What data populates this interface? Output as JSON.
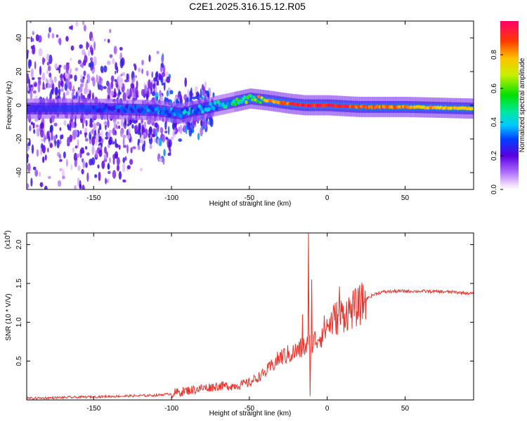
{
  "title": "C2E1.2025.316.15.12.R05",
  "chart_data": [
    {
      "type": "heatmap",
      "name": "spectrogram",
      "xlabel": "Height of straight line (km)",
      "ylabel": "Frequency (Hz)",
      "xlim": [
        -193,
        94
      ],
      "ylim": [
        -50,
        50
      ],
      "x_ticks": [
        -150,
        -100,
        -50,
        0,
        50
      ],
      "y_ticks": [
        -40,
        -20,
        0,
        20,
        40
      ],
      "colorbar": {
        "label": "Normalized spectral amplitude",
        "range": [
          0,
          1
        ],
        "ticks": [
          0.0,
          0.2,
          0.4,
          0.6,
          0.8
        ],
        "tick_labels": [
          "0.0",
          "0.2",
          "0.4",
          "0.6",
          "0.8"
        ]
      },
      "ridge_center_hz": [
        [
          -193,
          -2
        ],
        [
          -150,
          -2
        ],
        [
          -110,
          -3
        ],
        [
          -95,
          -5
        ],
        [
          -80,
          -2
        ],
        [
          -65,
          1
        ],
        [
          -50,
          4
        ],
        [
          -40,
          3
        ],
        [
          -25,
          1
        ],
        [
          -15,
          0
        ],
        [
          0,
          0
        ],
        [
          20,
          -1
        ],
        [
          50,
          -1
        ],
        [
          94,
          -2
        ]
      ],
      "peak_amplitude": [
        [
          -193,
          0.25
        ],
        [
          -150,
          0.3
        ],
        [
          -120,
          0.35
        ],
        [
          -100,
          0.4
        ],
        [
          -80,
          0.45
        ],
        [
          -60,
          0.55
        ],
        [
          -45,
          0.8
        ],
        [
          -30,
          0.9
        ],
        [
          -15,
          1.0
        ],
        [
          0,
          1.0
        ],
        [
          30,
          0.9
        ],
        [
          60,
          0.85
        ],
        [
          94,
          0.8
        ]
      ]
    },
    {
      "type": "line",
      "name": "snr",
      "xlabel": "Height of straight line (km)",
      "ylabel": "SNR (10 * V/V)",
      "multiplier_label": "(x10",
      "multiplier_exp": "4",
      "multiplier_close": ")",
      "xlim": [
        -193,
        94
      ],
      "ylim": [
        0,
        2.15
      ],
      "x_ticks": [
        -150,
        -100,
        -50,
        0,
        50
      ],
      "y_ticks": [
        0.5,
        1.0,
        1.5,
        2.0
      ],
      "y_tick_labels": [
        "0.5",
        "1.0",
        "1.5",
        "2.0"
      ],
      "color": "#e8342c",
      "series_envelope": [
        [
          -193,
          0.02
        ],
        [
          -150,
          0.04
        ],
        [
          -110,
          0.06
        ],
        [
          -100,
          0.08
        ],
        [
          -90,
          0.12
        ],
        [
          -80,
          0.15
        ],
        [
          -70,
          0.18
        ],
        [
          -60,
          0.18
        ],
        [
          -50,
          0.22
        ],
        [
          -40,
          0.35
        ],
        [
          -30,
          0.55
        ],
        [
          -20,
          0.62
        ],
        [
          -15,
          0.68
        ],
        [
          -10,
          0.72
        ],
        [
          -5,
          0.82
        ],
        [
          0,
          0.95
        ],
        [
          5,
          1.05
        ],
        [
          10,
          1.1
        ],
        [
          15,
          1.15
        ],
        [
          20,
          1.2
        ],
        [
          25,
          1.3
        ],
        [
          30,
          1.36
        ],
        [
          35,
          1.39
        ],
        [
          45,
          1.4
        ],
        [
          60,
          1.4
        ],
        [
          80,
          1.39
        ],
        [
          94,
          1.37
        ]
      ],
      "spikes": [
        [
          -12,
          2.15
        ],
        [
          -11,
          0.05
        ],
        [
          -10,
          1.55
        ],
        [
          8,
          1.46
        ],
        [
          -16,
          1.1
        ]
      ]
    }
  ]
}
